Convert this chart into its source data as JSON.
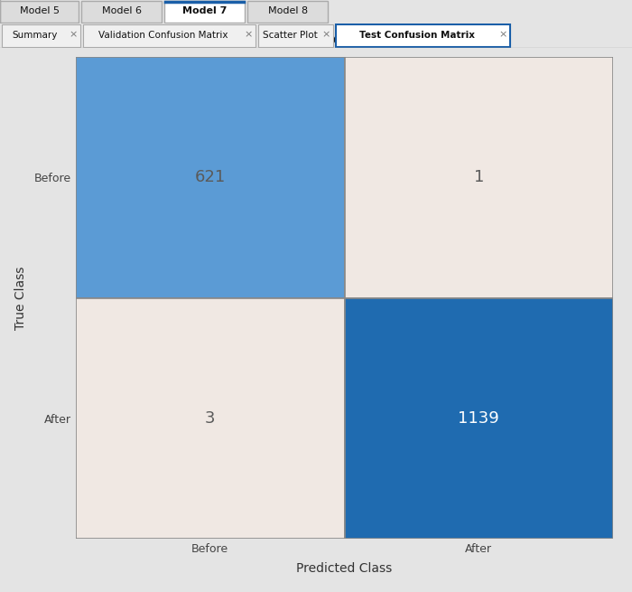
{
  "title": "Model 7",
  "matrix": [
    [
      621,
      1
    ],
    [
      3,
      1139
    ]
  ],
  "classes": [
    "Before",
    "After"
  ],
  "xlabel": "Predicted Class",
  "ylabel": "True Class",
  "cell_colors": [
    [
      "#5b9bd5",
      "#f0e8e3"
    ],
    [
      "#f0e8e3",
      "#1f6bb0"
    ]
  ],
  "text_colors": [
    [
      "#5a5a5a",
      "#5a5a5a"
    ],
    [
      "#5a5a5a",
      "#ffffff"
    ]
  ],
  "background_color": "#e4e4e4",
  "title_fontsize": 12,
  "label_fontsize": 10,
  "cell_fontsize": 13,
  "tick_fontsize": 9,
  "figsize": [
    7.0,
    6.55
  ],
  "dpi": 100,
  "tab_labels": [
    "Model 5",
    "Model 6",
    "Model 7",
    "Model 8"
  ],
  "subtab_labels": [
    "Summary",
    "Validation Confusion Matrix",
    "Scatter Plot",
    "Test Confusion Matrix"
  ],
  "active_tab": 2,
  "active_subtab": 3,
  "tab_color_active": "#ffffff",
  "tab_color_inactive": "#dcdcdc",
  "subtab_active_edge": "#1a5fa8"
}
